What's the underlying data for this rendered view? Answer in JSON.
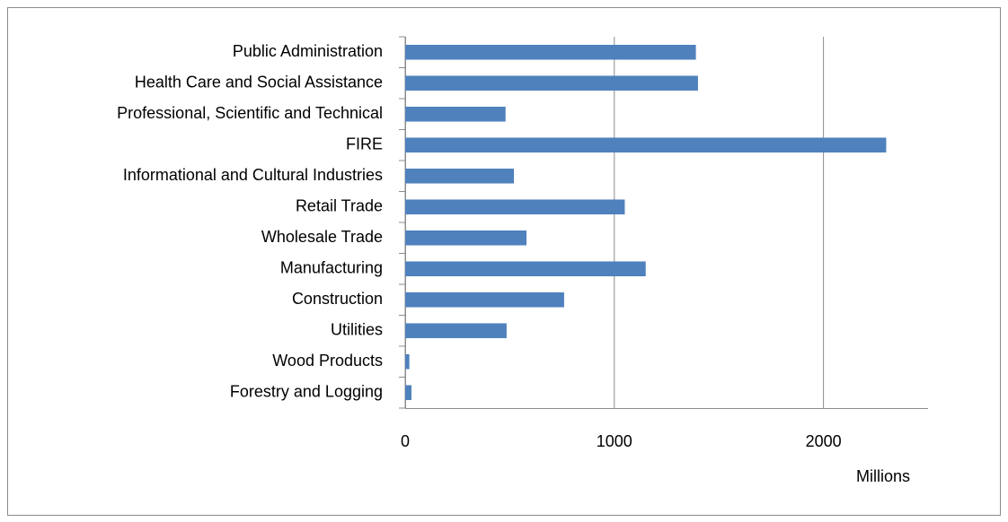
{
  "chart_data": {
    "type": "bar",
    "orientation": "horizontal",
    "categories": [
      "Public Administration",
      "Health Care and Social Assistance",
      "Professional, Scientific and Technical",
      "FIRE",
      "Informational and Cultural Industries",
      "Retail Trade",
      "Wholesale Trade",
      "Manufacturing",
      "Construction",
      "Utilities",
      "Wood Products",
      "Forestry and Logging"
    ],
    "values": [
      1390,
      1400,
      480,
      2300,
      520,
      1050,
      580,
      1150,
      760,
      485,
      20,
      30
    ],
    "color": "#4f81bd",
    "xlim": [
      0,
      2500
    ],
    "xticks": [
      0,
      1000,
      2000
    ],
    "grid": true,
    "x_label": "Millions"
  }
}
